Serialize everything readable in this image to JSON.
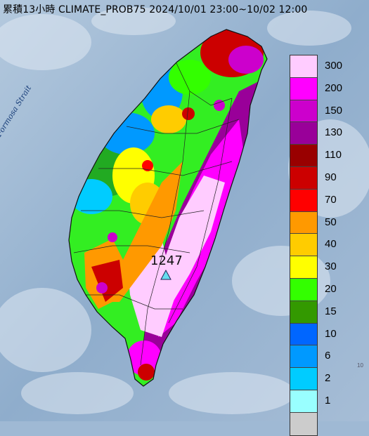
{
  "title": "累積13小時 CLIMATE_PROB75 2024/10/01 23:00~10/02 12:00",
  "strait_label": "Formosa Strait",
  "station": {
    "value": "1247",
    "marker": "triangle-icon",
    "marker_color": "#66ddee"
  },
  "legend": [
    {
      "label": "300",
      "color": "#ffccff"
    },
    {
      "label": "200",
      "color": "#ff00ff"
    },
    {
      "label": "150",
      "color": "#cc00cc"
    },
    {
      "label": "130",
      "color": "#990099"
    },
    {
      "label": "110",
      "color": "#990000"
    },
    {
      "label": "90",
      "color": "#cc0000"
    },
    {
      "label": "70",
      "color": "#ff0000"
    },
    {
      "label": "50",
      "color": "#ff9900"
    },
    {
      "label": "40",
      "color": "#ffcc00"
    },
    {
      "label": "30",
      "color": "#ffff00"
    },
    {
      "label": "20",
      "color": "#33ff00"
    },
    {
      "label": "15",
      "color": "#339900"
    },
    {
      "label": "10",
      "color": "#0066ff"
    },
    {
      "label": "6",
      "color": "#0099ff"
    },
    {
      "label": "2",
      "color": "#00ccff"
    },
    {
      "label": "1",
      "color": "#99ffff"
    },
    {
      "label": "",
      "color": "#cccccc"
    }
  ],
  "corner_note": "10"
}
